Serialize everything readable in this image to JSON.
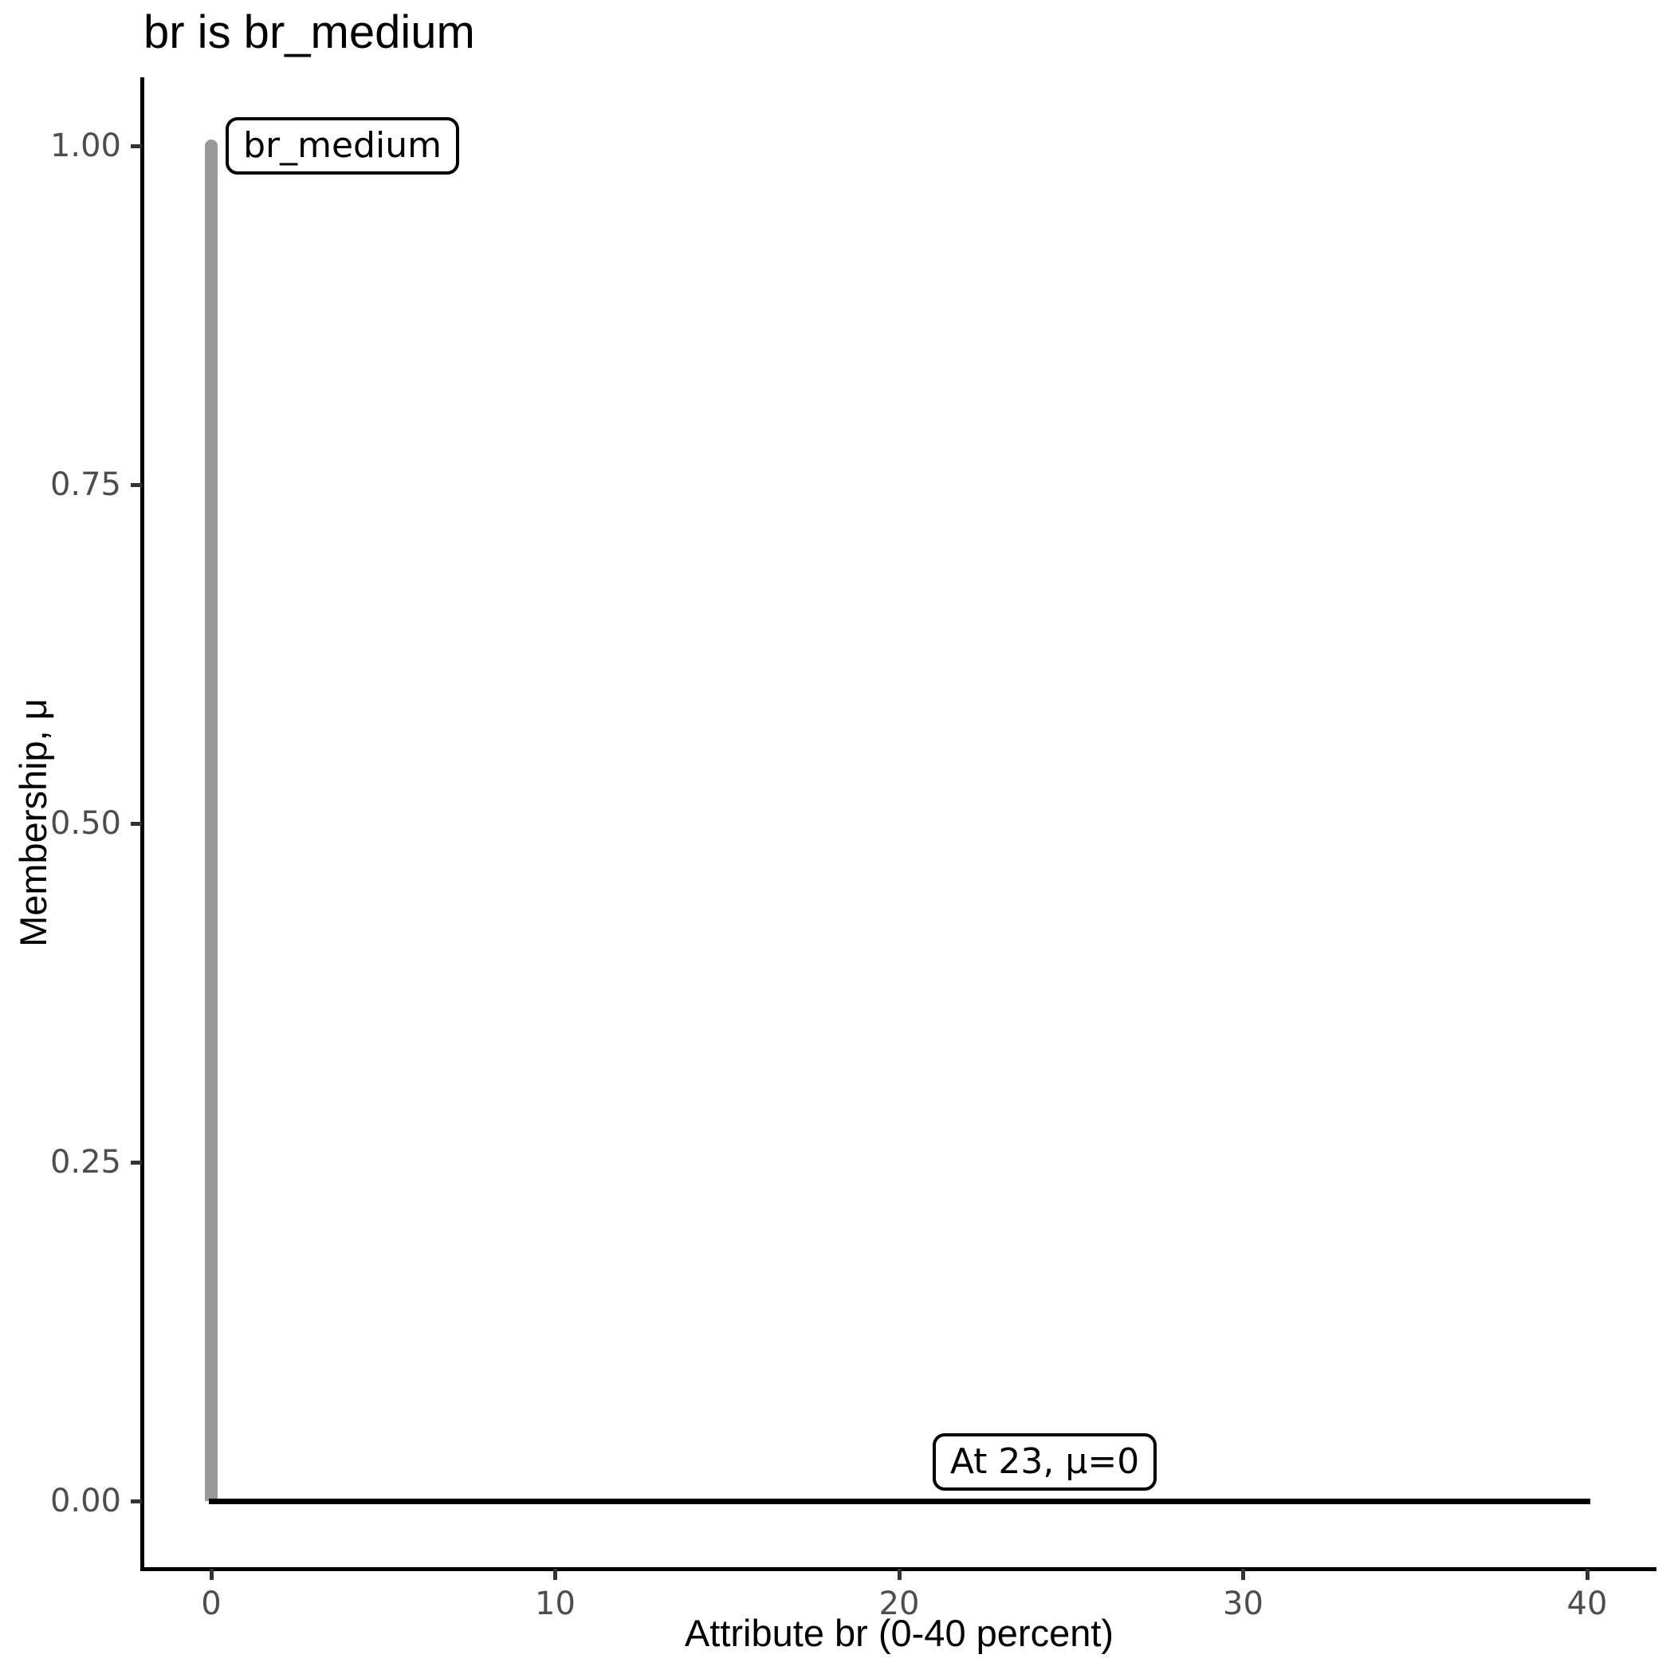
{
  "chart_data": {
    "type": "line",
    "title": "br is br_medium",
    "xlabel": "Attribute br (0-40 percent)",
    "ylabel": "Membership, μ",
    "xlim": [
      0,
      40
    ],
    "ylim": [
      0.0,
      1.0
    ],
    "grid": false,
    "legend": false,
    "x_ticks": {
      "values": [
        0,
        10,
        20,
        30,
        40
      ],
      "labels": [
        "0",
        "10",
        "20",
        "30",
        "40"
      ]
    },
    "y_ticks": {
      "values": [
        1.0,
        0.75,
        0.5,
        0.25,
        0.0
      ],
      "labels": [
        "1.00",
        "0.75",
        "0.50",
        "0.25",
        "0.00"
      ]
    },
    "series": [
      {
        "name": "br-medium-membership-spike",
        "shape": "vline",
        "x": 0,
        "mu_from": 0.0,
        "mu_to": 1.0,
        "color": "#999999",
        "thickness_px": 16,
        "cap": "round-top"
      },
      {
        "name": "membership-at-crisp-value",
        "shape": "hline",
        "mu": 0.0,
        "x_from": 0,
        "x_to": 40,
        "color": "#000000",
        "thickness_px": 7,
        "cap": "butt"
      }
    ],
    "annotations": [
      {
        "text": "br_medium",
        "x": 0.42,
        "mu": 1.0
      },
      {
        "text": "At 23, μ=0",
        "x": 20.97,
        "mu": 0.029
      }
    ]
  },
  "colors": {
    "background": "#ffffff",
    "axis_line": "#000000",
    "tick_mark": "#333333",
    "tick_text": "#4d4d4d",
    "title_text": "#000000",
    "spike_gray": "#999999",
    "data_black": "#000000",
    "annotation_bg": "#ffffff",
    "annotation_border": "#000000"
  }
}
